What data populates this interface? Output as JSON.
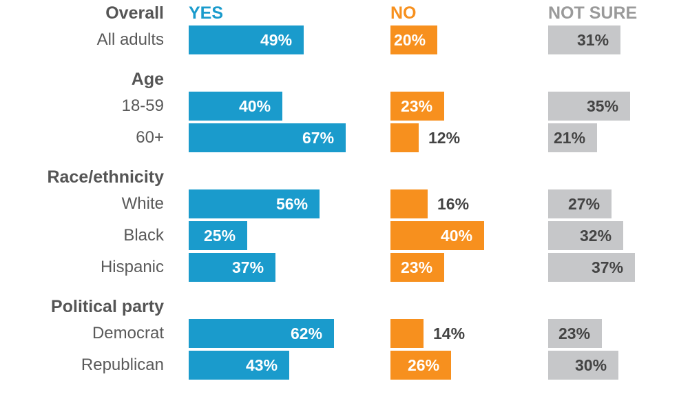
{
  "headers": {
    "yes": "YES",
    "no": "NO",
    "not_sure": "NOT SURE"
  },
  "colors": {
    "yes": "#1a9bcc",
    "no": "#f7901e",
    "not_sure": "#c6c7c9",
    "header_not_sure": "#9a9a9a",
    "group_text": "#555555",
    "row_text": "#595959",
    "value_dark": "#444444",
    "value_light": "#ffffff"
  },
  "chart_data": {
    "type": "bar",
    "orientation": "horizontal",
    "unit": "%",
    "series": [
      {
        "name": "YES",
        "key": "yes"
      },
      {
        "name": "NO",
        "key": "no"
      },
      {
        "name": "NOT SURE",
        "key": "not_sure"
      }
    ],
    "groups": [
      {
        "title": "Overall",
        "rows": [
          {
            "label": "All adults",
            "yes": 49,
            "no": 20,
            "not_sure": 31
          }
        ]
      },
      {
        "title": "Age",
        "rows": [
          {
            "label": "18-59",
            "yes": 40,
            "no": 23,
            "not_sure": 35
          },
          {
            "label": "60+",
            "yes": 67,
            "no": 12,
            "not_sure": 21
          }
        ]
      },
      {
        "title": "Race/ethnicity",
        "rows": [
          {
            "label": "White",
            "yes": 56,
            "no": 16,
            "not_sure": 27
          },
          {
            "label": "Black",
            "yes": 25,
            "no": 40,
            "not_sure": 32
          },
          {
            "label": "Hispanic",
            "yes": 37,
            "no": 23,
            "not_sure": 37
          }
        ]
      },
      {
        "title": "Political party",
        "rows": [
          {
            "label": "Democrat",
            "yes": 62,
            "no": 14,
            "not_sure": 23
          },
          {
            "label": "Republican",
            "yes": 43,
            "no": 26,
            "not_sure": 30
          }
        ]
      }
    ]
  }
}
